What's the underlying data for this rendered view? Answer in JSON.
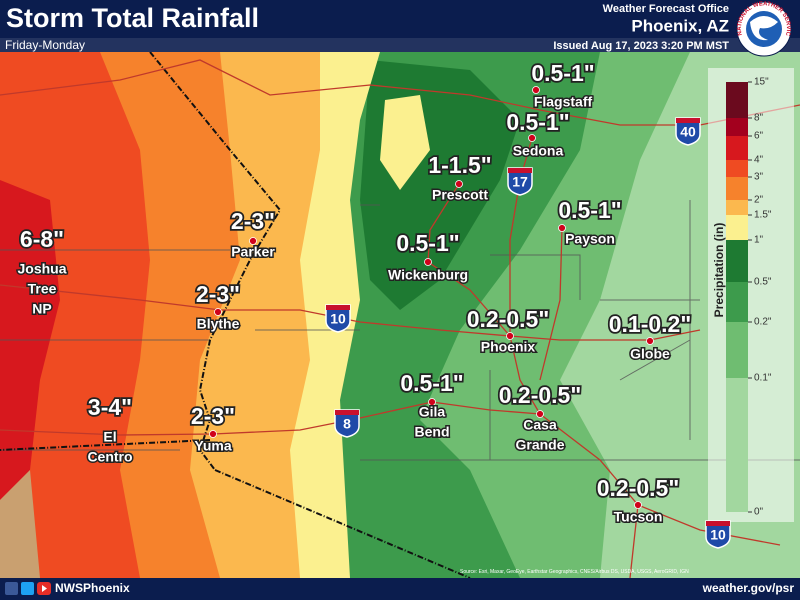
{
  "header": {
    "title": "Storm Total Rainfall",
    "subtitle": "Friday-Monday",
    "office": "Weather Forecast Office",
    "location": "Phoenix, AZ",
    "issued": "Issued Aug 17, 2023 3:20 PM MST",
    "logo_text": "NATIONAL WEATHER SERVICE"
  },
  "legend": {
    "title": "Precipitation (in)",
    "labels": [
      "15\"",
      "8\"",
      "6\"",
      "4\"",
      "3\"",
      "2\"",
      "1.5\"",
      "1\"",
      "0.5\"",
      "0.2\"",
      "0.1\"",
      "0\""
    ],
    "colors": [
      "#6b0a1e",
      "#a3001e",
      "#d7181e",
      "#ef4b22",
      "#f6822c",
      "#fbb84e",
      "#fbf08f",
      "#1e7a32",
      "#3d9b4c",
      "#6fbd71",
      "#a2d79f",
      "#cde9c8"
    ]
  },
  "locations": [
    {
      "amount": "0.5-1\"",
      "name": [
        "Flagstaff"
      ]
    },
    {
      "amount": "0.5-1\"",
      "name": [
        "Sedona"
      ]
    },
    {
      "amount": "1-1.5\"",
      "name": [
        "Prescott"
      ]
    },
    {
      "amount": "0.5-1\"",
      "name": [
        "Payson"
      ]
    },
    {
      "amount": "2-3\"",
      "name": [
        "Parker"
      ]
    },
    {
      "amount": "6-8\"",
      "name": [
        "Joshua",
        "Tree",
        "NP"
      ]
    },
    {
      "amount": "0.5-1\"",
      "name": [
        "Wickenburg"
      ]
    },
    {
      "amount": "2-3\"",
      "name": [
        "Blythe"
      ]
    },
    {
      "amount": "0.2-0.5\"",
      "name": [
        "Phoenix"
      ]
    },
    {
      "amount": "0.1-0.2\"",
      "name": [
        "Globe"
      ]
    },
    {
      "amount": "0.5-1\"",
      "name": [
        "Gila",
        "Bend"
      ]
    },
    {
      "amount": "0.2-0.5\"",
      "name": [
        "Casa",
        "Grande"
      ]
    },
    {
      "amount": "3-4\"",
      "name": [
        "El",
        "Centro"
      ]
    },
    {
      "amount": "2-3\"",
      "name": [
        "Yuma"
      ]
    },
    {
      "amount": "0.2-0.5\"",
      "name": [
        "Tucson"
      ]
    }
  ],
  "shields": [
    "40",
    "17",
    "10",
    "8",
    "10"
  ],
  "footer": {
    "handle": "NWSPhoenix",
    "url": "weather.gov/psr",
    "source": "Source: Esri, Maxar, GeoEye, Earthstar Geographics, CNES/Airbus DS, USDA, USGS, AeroGRID, IGN"
  }
}
